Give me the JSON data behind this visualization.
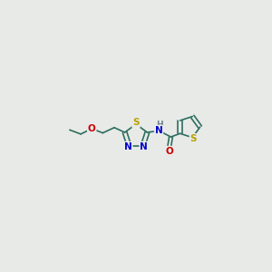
{
  "background_color": "#e8eae8",
  "bond_color": "#2d6e5e",
  "bond_width": 1.2,
  "atom_colors": {
    "S": "#b8a000",
    "N": "#0000cc",
    "O": "#cc0000",
    "H": "#708090",
    "C": "#2d6e5e"
  },
  "font_size": 7.5,
  "fig_width": 3.0,
  "fig_height": 3.0,
  "dpi": 100,
  "xlim": [
    0,
    14
  ],
  "ylim": [
    0,
    10
  ]
}
